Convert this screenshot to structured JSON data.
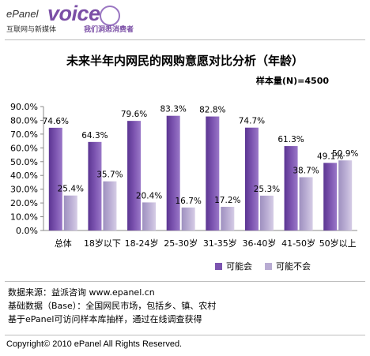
{
  "logo": {
    "brand": "ePanel",
    "product": "voice",
    "tagline_left": "互联网与新媒体",
    "tagline_right": "我们洞悉消费者"
  },
  "header": {
    "title": "未来半年内网民的网购意愿对比分析（年龄）",
    "sample_size": "样本量(N)=4500"
  },
  "chart_data": {
    "type": "bar",
    "title": "未来半年内网民的网购意愿对比分析（年龄）",
    "categories": [
      "总体",
      "18岁以下",
      "18-24岁",
      "25-30岁",
      "31-35岁",
      "36-40岁",
      "41-50岁",
      "50岁以上"
    ],
    "series": [
      {
        "name": "可能会",
        "values": [
          74.6,
          64.3,
          79.6,
          83.3,
          82.8,
          74.7,
          61.3,
          49.1
        ],
        "color": "#7c54b0"
      },
      {
        "name": "可能不会",
        "values": [
          25.4,
          35.7,
          20.4,
          16.7,
          17.2,
          25.3,
          38.7,
          50.9
        ],
        "color": "#b9acd3"
      }
    ],
    "data_labels": [
      [
        "74.6%",
        "64.3%",
        "79.6%",
        "83.3%",
        "82.8%",
        "74.7%",
        "61.3%",
        "49.1%"
      ],
      [
        "25.4%",
        "35.7%",
        "20.4%",
        "16.7%",
        "17.2%",
        "25.3%",
        "38.7%",
        "50.9%"
      ]
    ],
    "yticks": [
      "0.0%",
      "10.0%",
      "20.0%",
      "30.0%",
      "40.0%",
      "50.0%",
      "60.0%",
      "70.0%",
      "80.0%",
      "90.0%"
    ],
    "ylim": [
      0,
      90
    ],
    "legend_position": "bottom-right",
    "grid": false
  },
  "notes": {
    "line1": "数据来源：益派咨询  www.epanel.cn",
    "line2": "基础数据（Base）：全国网民市场，包括乡、镇、农村",
    "line3": "基于ePanel可访问样本库抽样，通过在线调查获得"
  },
  "footer": {
    "copyright": "Copyright© 2010 ePanel All Rights Reserved."
  }
}
